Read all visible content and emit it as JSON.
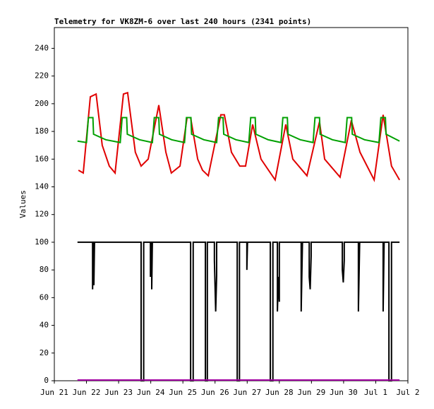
{
  "chart_data": {
    "type": "line",
    "title": "Telemetry for VK8ZM-6 over last 240 hours (2341 points)",
    "ylabel": "Values",
    "xlim": [
      0,
      11
    ],
    "xticks": [
      {
        "value": 0,
        "label": "Jun 21"
      },
      {
        "value": 1,
        "label": "Jun 22"
      },
      {
        "value": 2,
        "label": "Jun 23"
      },
      {
        "value": 3,
        "label": "Jun 24"
      },
      {
        "value": 4,
        "label": "Jun 25"
      },
      {
        "value": 5,
        "label": "Jun 26"
      },
      {
        "value": 6,
        "label": "Jun 27"
      },
      {
        "value": 7,
        "label": "Jun 28"
      },
      {
        "value": 8,
        "label": "Jun 29"
      },
      {
        "value": 9,
        "label": "Jun 30"
      },
      {
        "value": 10,
        "label": "Jul 1"
      },
      {
        "value": 11,
        "label": "Jul 2"
      }
    ],
    "ylim": [
      0,
      255
    ],
    "yticks": [
      0,
      20,
      40,
      60,
      80,
      100,
      120,
      140,
      160,
      180,
      200,
      220,
      240
    ],
    "grid": false,
    "series": [
      {
        "color": "#e00000",
        "x": [
          0.75,
          0.9,
          1.12,
          1.3,
          1.49,
          1.71,
          1.89,
          2.15,
          2.28,
          2.52,
          2.7,
          2.92,
          3.25,
          3.47,
          3.64,
          3.91,
          4.13,
          4.24,
          4.46,
          4.61,
          4.79,
          5.18,
          5.29,
          5.51,
          5.77,
          5.95,
          6.17,
          6.43,
          6.87,
          7.2,
          7.42,
          7.86,
          8.25,
          8.41,
          8.89,
          9.24,
          9.51,
          9.95,
          10.23,
          10.49,
          10.74
        ],
        "values": [
          152,
          150,
          205,
          207,
          170,
          155,
          150,
          207,
          208,
          165,
          155,
          160,
          199,
          165,
          150,
          155,
          190,
          190,
          160,
          152,
          148,
          192,
          192,
          165,
          155,
          155,
          185,
          160,
          145,
          185,
          160,
          148,
          187,
          160,
          147,
          188,
          165,
          145,
          192,
          155,
          145
        ]
      },
      {
        "color": "#00a000",
        "x": [
          0.72,
          1.0,
          1.06,
          1.2,
          1.22,
          1.6,
          2.05,
          2.11,
          2.25,
          2.27,
          2.65,
          3.05,
          3.11,
          3.25,
          3.27,
          3.65,
          4.05,
          4.11,
          4.25,
          4.27,
          4.65,
          5.05,
          5.11,
          5.25,
          5.27,
          5.65,
          6.05,
          6.11,
          6.25,
          6.27,
          6.65,
          7.05,
          7.11,
          7.25,
          7.27,
          7.65,
          8.05,
          8.11,
          8.25,
          8.27,
          8.65,
          9.05,
          9.11,
          9.25,
          9.27,
          9.65,
          10.1,
          10.16,
          10.3,
          10.32,
          10.74
        ],
        "values": [
          173,
          172,
          190,
          190,
          178,
          174,
          172,
          190,
          190,
          178,
          174,
          172,
          190,
          190,
          178,
          174,
          172,
          190,
          190,
          178,
          174,
          172,
          190,
          190,
          178,
          174,
          172,
          190,
          190,
          178,
          174,
          172,
          190,
          190,
          178,
          174,
          172,
          190,
          190,
          178,
          174,
          172,
          190,
          190,
          178,
          174,
          172,
          190,
          190,
          178,
          173
        ]
      },
      {
        "color": "#000000",
        "x": [
          0.72,
          1.19,
          1.19,
          1.21,
          1.23,
          1.23,
          1.25,
          2.7,
          2.7,
          2.78,
          2.78,
          2.99,
          2.99,
          3.01,
          3.03,
          3.03,
          3.05,
          4.24,
          4.24,
          4.32,
          4.32,
          4.7,
          4.7,
          4.76,
          4.76,
          4.98,
          4.98,
          5.02,
          5.05,
          5.05,
          5.07,
          5.69,
          5.69,
          5.76,
          5.76,
          5.99,
          5.99,
          6.01,
          6.72,
          6.72,
          6.8,
          6.8,
          6.94,
          6.94,
          6.97,
          7.0,
          7.0,
          7.02,
          7.68,
          7.68,
          7.72,
          7.93,
          7.93,
          7.96,
          7.99,
          7.99,
          8.01,
          8.96,
          8.96,
          8.99,
          9.02,
          9.02,
          9.04,
          9.46,
          9.46,
          9.5,
          10.23,
          10.23,
          10.26,
          10.41,
          10.41,
          10.49,
          10.49,
          10.74
        ],
        "values": [
          100,
          100,
          66,
          100,
          100,
          69,
          100,
          100,
          0,
          0,
          100,
          100,
          75,
          100,
          100,
          66,
          100,
          100,
          0,
          0,
          100,
          100,
          0,
          0,
          100,
          100,
          87,
          50,
          76,
          100,
          100,
          100,
          0,
          0,
          100,
          100,
          80,
          100,
          100,
          0,
          0,
          100,
          100,
          50,
          75,
          57,
          100,
          100,
          100,
          50,
          100,
          100,
          75,
          66,
          90,
          100,
          100,
          100,
          80,
          71,
          87,
          100,
          100,
          100,
          50,
          100,
          100,
          50,
          100,
          100,
          0,
          0,
          100,
          100
        ]
      },
      {
        "color": "#a000a0",
        "x": [
          0.72,
          10.74
        ],
        "values": [
          0.5,
          0.5
        ]
      }
    ]
  }
}
